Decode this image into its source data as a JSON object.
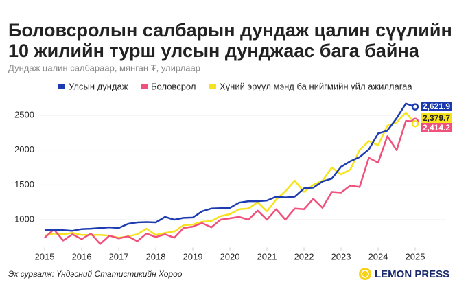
{
  "chart_data": {
    "type": "line",
    "title": "Боловсролын салбарын дундаж цалин сүүлийн 10 жилийн турш улсын дунджаас бага байна",
    "subtitle": "Дундаж цалин салбараар, мянган ₮, улирлаар",
    "source": "Эх сурвалж: Үндэсний Статистикийн Хороо",
    "brand": "LEMON PRESS",
    "x": [
      2015,
      2015.25,
      2015.5,
      2015.75,
      2016,
      2016.25,
      2016.5,
      2016.75,
      2017,
      2017.25,
      2017.5,
      2017.75,
      2018,
      2018.25,
      2018.5,
      2018.75,
      2019,
      2019.25,
      2019.5,
      2019.75,
      2020,
      2020.25,
      2020.5,
      2020.75,
      2021,
      2021.25,
      2021.5,
      2021.75,
      2022,
      2022.25,
      2022.5,
      2022.75,
      2023,
      2023.25,
      2023.5,
      2023.75,
      2024,
      2024.25,
      2024.5,
      2024.75,
      2025
    ],
    "xlim": [
      2015,
      2025
    ],
    "xticks": [
      2015,
      2016,
      2017,
      2018,
      2019,
      2020,
      2021,
      2022,
      2023,
      2024,
      2025
    ],
    "ylim": [
      600,
      2750
    ],
    "yticks": [
      1000,
      1500,
      2000,
      2500
    ],
    "grid": true,
    "series": [
      {
        "name": "Улсын дундаж",
        "color": "#1c3bb0",
        "values": [
          850,
          855,
          850,
          840,
          865,
          870,
          880,
          890,
          880,
          940,
          960,
          965,
          960,
          1040,
          1000,
          1025,
          1030,
          1120,
          1160,
          1165,
          1170,
          1245,
          1265,
          1265,
          1275,
          1330,
          1320,
          1330,
          1450,
          1460,
          1550,
          1590,
          1760,
          1840,
          1900,
          2010,
          2240,
          2280,
          2460,
          2670,
          2621.9
        ],
        "value_labels": [
          null,
          null,
          null,
          null,
          null,
          null,
          null,
          null,
          null,
          null,
          null,
          null,
          null,
          null,
          null,
          null,
          null,
          null,
          null,
          null,
          null,
          null,
          null,
          null,
          null,
          null,
          null,
          null,
          null,
          null,
          null,
          null,
          null,
          null,
          null,
          null,
          null,
          null,
          null,
          null,
          "2,621.9"
        ]
      },
      {
        "name": "Боловсрол",
        "color": "#f0517c",
        "values": [
          740,
          860,
          700,
          790,
          720,
          800,
          650,
          770,
          730,
          760,
          690,
          800,
          750,
          790,
          740,
          880,
          900,
          950,
          890,
          1000,
          1020,
          1040,
          1000,
          1130,
          1000,
          1150,
          1000,
          1160,
          1150,
          1300,
          1170,
          1400,
          1390,
          1490,
          1470,
          1890,
          1820,
          2200,
          2000,
          2420,
          2414.2
        ],
        "value_labels": [
          null,
          null,
          null,
          null,
          null,
          null,
          null,
          null,
          null,
          null,
          null,
          null,
          null,
          null,
          null,
          null,
          null,
          null,
          null,
          null,
          null,
          null,
          null,
          null,
          null,
          null,
          null,
          null,
          null,
          null,
          null,
          null,
          null,
          null,
          null,
          null,
          null,
          null,
          null,
          null,
          "2,414.2"
        ]
      },
      {
        "name": "Хүний эрүүл мэнд ба нийгмийн үйл ажиллагаа",
        "color": "#f7e31c",
        "values": [
          770,
          800,
          790,
          810,
          780,
          780,
          780,
          770,
          740,
          760,
          790,
          870,
          780,
          810,
          830,
          920,
          930,
          970,
          980,
          1050,
          1080,
          1150,
          1160,
          1250,
          1120,
          1290,
          1410,
          1560,
          1400,
          1500,
          1560,
          1750,
          1650,
          1720,
          2000,
          2130,
          2070,
          2350,
          2400,
          2540,
          2379.7
        ],
        "value_labels": [
          null,
          null,
          null,
          null,
          null,
          null,
          null,
          null,
          null,
          null,
          null,
          null,
          null,
          null,
          null,
          null,
          null,
          null,
          null,
          null,
          null,
          null,
          null,
          null,
          null,
          null,
          null,
          null,
          null,
          null,
          null,
          null,
          null,
          null,
          null,
          null,
          null,
          null,
          null,
          null,
          "2,379.7"
        ]
      }
    ]
  }
}
